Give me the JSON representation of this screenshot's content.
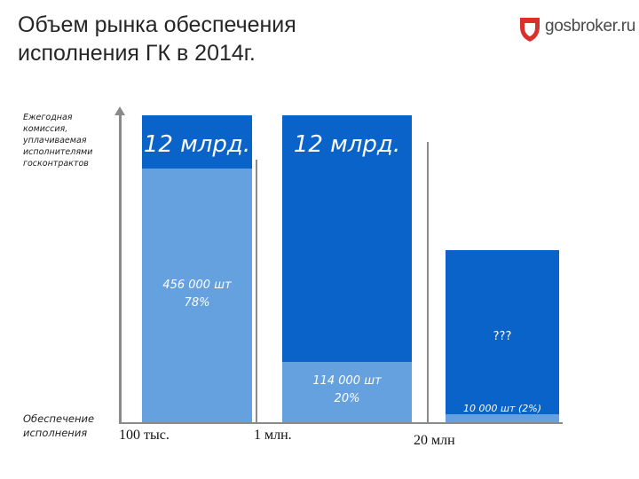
{
  "title": "Объем рынка обеспечения\nисполнения ГК в 2014г.",
  "logo": {
    "text": "gosbroker.ru"
  },
  "y_label": "Ежегодная\nкомиссия,\nуплачиваемая\nисполнителями\nгосконтрактов",
  "bottom_label": "Обеспечение\nисполнения",
  "colors": {
    "dark": "#0a63c9",
    "light": "#65a1de",
    "accent": "#d9302c"
  },
  "chart_data": {
    "type": "bar",
    "categories": [
      "100 тыс.",
      "1 млн.",
      "20 млн"
    ],
    "bars": [
      {
        "top_label": "12 млрд.",
        "bottom_label": "456 000 шт\n78%",
        "share_percent": 78
      },
      {
        "top_label": "12 млрд.",
        "bottom_label": "114 000 шт\n20%",
        "share_percent": 20
      },
      {
        "top_label": "???",
        "bottom_label": "10 000 шт (2%)",
        "share_percent": 2
      }
    ]
  }
}
